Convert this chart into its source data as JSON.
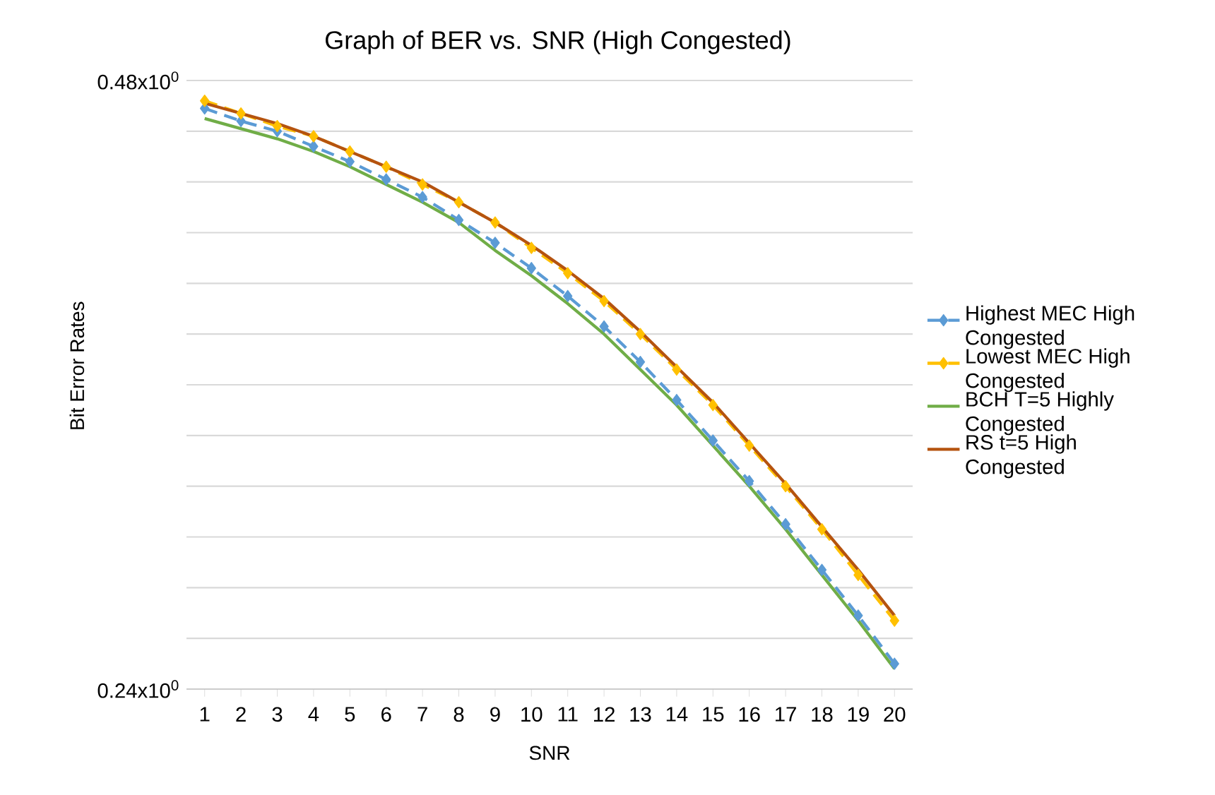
{
  "chart_data": {
    "type": "line",
    "title": "Graph of BER vs. SNR (High Congested)",
    "xlabel": "SNR",
    "ylabel": "Bit Error Rates",
    "categories": [
      "1",
      "2",
      "3",
      "4",
      "5",
      "6",
      "7",
      "8",
      "9",
      "10",
      "11",
      "12",
      "13",
      "14",
      "15",
      "16",
      "17",
      "18",
      "19",
      "20"
    ],
    "ylim": [
      0.24,
      0.48
    ],
    "yticks": [
      {
        "value": 0.24,
        "label": "0.24x10$^{0}$"
      },
      {
        "value": 0.26,
        "label": null
      },
      {
        "value": 0.28,
        "label": null
      },
      {
        "value": 0.3,
        "label": null
      },
      {
        "value": 0.32,
        "label": null
      },
      {
        "value": 0.34,
        "label": null
      },
      {
        "value": 0.36,
        "label": null
      },
      {
        "value": 0.38,
        "label": null
      },
      {
        "value": 0.4,
        "label": null
      },
      {
        "value": 0.42,
        "label": null
      },
      {
        "value": 0.44,
        "label": null
      },
      {
        "value": 0.46,
        "label": null
      },
      {
        "value": 0.48,
        "label": "0.48x10$^{0}$"
      }
    ],
    "grid": "y",
    "legend": "right",
    "series": [
      {
        "name": "Highest MEC High Congested",
        "color": "#5b9bd5",
        "marker": "diamond",
        "line_style": "dashed",
        "values": [
          0.469,
          0.464,
          0.46,
          0.454,
          0.448,
          0.441,
          0.434,
          0.425,
          0.416,
          0.406,
          0.395,
          0.383,
          0.369,
          0.354,
          0.338,
          0.322,
          0.305,
          0.287,
          0.269,
          0.25
        ]
      },
      {
        "name": "Lowest MEC High Congested",
        "color": "#ffc000",
        "marker": "diamond",
        "line_style": "dashed",
        "values": [
          0.472,
          0.467,
          0.462,
          0.458,
          0.452,
          0.446,
          0.439,
          0.432,
          0.424,
          0.414,
          0.404,
          0.393,
          0.38,
          0.366,
          0.352,
          0.336,
          0.32,
          0.303,
          0.285,
          0.267
        ]
      },
      {
        "name": "BCH T=5 Highly Congested",
        "color": "#70ad47",
        "marker": "none",
        "line_style": "solid",
        "values": [
          0.465,
          0.461,
          0.457,
          0.452,
          0.446,
          0.439,
          0.432,
          0.424,
          0.413,
          0.403,
          0.392,
          0.38,
          0.366,
          0.352,
          0.336,
          0.32,
          0.303,
          0.285,
          0.267,
          0.248
        ]
      },
      {
        "name": "RS t=5 High Congested",
        "color": "#b5530f",
        "marker": "none",
        "line_style": "solid",
        "values": [
          0.471,
          0.467,
          0.463,
          0.458,
          0.452,
          0.446,
          0.44,
          0.432,
          0.424,
          0.415,
          0.405,
          0.394,
          0.381,
          0.367,
          0.353,
          0.337,
          0.321,
          0.304,
          0.287,
          0.269
        ]
      }
    ]
  }
}
